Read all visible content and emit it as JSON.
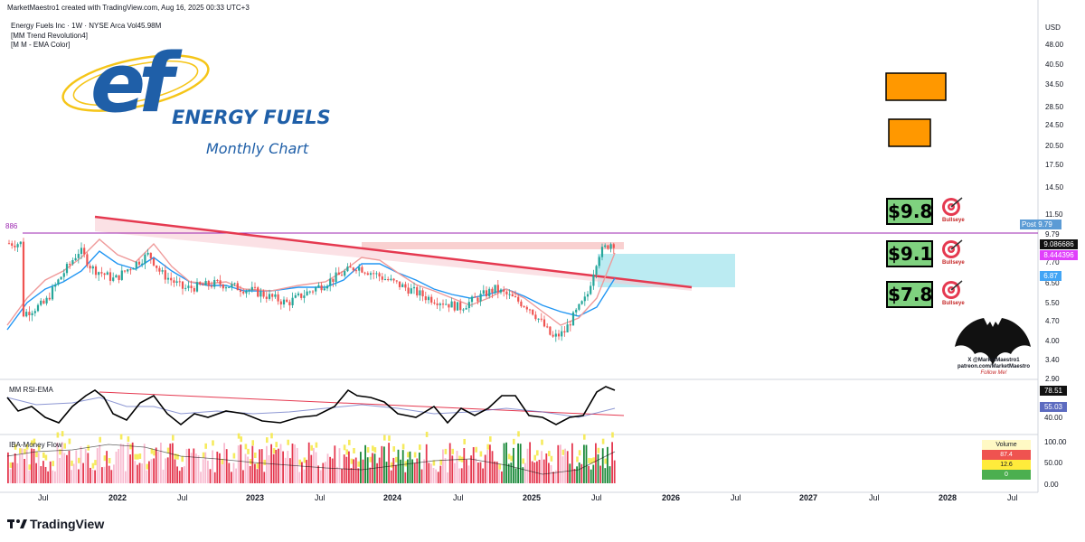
{
  "header": {
    "created": "MarketMaestro1 created with TradingView.com, Aug 16, 2025 00:33 UTC+3",
    "symbol_line": "Energy Fuels Inc · 1W · NYSE Arca  Vol45.98M",
    "indicator1": "[MM Trend Revolution4]",
    "indicator2": "[M M - EMA Color]"
  },
  "logo": {
    "letters": "ef",
    "brand": "ENERGY FUELS",
    "subtitle": "Monthly Chart"
  },
  "price_axis": {
    "currency": "USD",
    "ticks": [
      "48.00",
      "40.50",
      "34.50",
      "28.50",
      "24.50",
      "20.50",
      "17.50",
      "14.50",
      "11.50",
      "9.79",
      "7.70",
      "6.50",
      "5.50",
      "4.70",
      "4.00",
      "3.40",
      "2.90"
    ],
    "post_label": "Post",
    "post_value": "9.79",
    "last_value": "9.086686",
    "ema_value": "8.444396",
    "ema2_value": "6.87",
    "level_label": "886"
  },
  "targets": [
    {
      "label": "$9.8",
      "caption": "Bullseye"
    },
    {
      "label": "$9.1",
      "caption": "Bullseye"
    },
    {
      "label": "$7.8",
      "caption": "Bullseye"
    }
  ],
  "rsi": {
    "title": "MM RSI-EMA",
    "value": "78.51",
    "ema_value": "55.03",
    "tick": "40.00"
  },
  "money_flow": {
    "title": "IBA-Money Flow",
    "ticks": [
      "100.00",
      "50.00",
      "0.00"
    ],
    "table_header": "Volume",
    "table_rows": [
      "87.4",
      "12.6",
      "0"
    ]
  },
  "watermark": {
    "line1": "X @MarketMaestro1",
    "line2": "patreon.com/MarketMaestro",
    "line3": "Follow Me!"
  },
  "time_axis": [
    "Jul",
    "2022",
    "Jul",
    "2023",
    "Jul",
    "2024",
    "Jul",
    "2025",
    "Jul",
    "2026",
    "Jul",
    "2027",
    "Jul",
    "2028",
    "Jul"
  ],
  "footer": {
    "brand": "TradingView"
  },
  "colors": {
    "bull": "#26a69a",
    "bear": "#ef5350",
    "trendline": "#e53950",
    "resistance": "#9c27b0",
    "ema_fast": "#2196f3",
    "target_box": "#7fd17f",
    "orange_box": "#ff9800",
    "zone": "#a4e4ee"
  },
  "chart_data": {
    "type": "candlestick",
    "x_range": [
      "2021-05",
      "2028-09"
    ],
    "y_scale": "log",
    "y_range": [
      2.9,
      48
    ],
    "close_series_approx": [
      {
        "x": "2021-05",
        "y": 5.0
      },
      {
        "x": "2021-07",
        "y": 5.5
      },
      {
        "x": "2021-09",
        "y": 7.5
      },
      {
        "x": "2021-10",
        "y": 8.6
      },
      {
        "x": "2021-11",
        "y": 7.4
      },
      {
        "x": "2022-01",
        "y": 6.7
      },
      {
        "x": "2022-04",
        "y": 8.3
      },
      {
        "x": "2022-05",
        "y": 7.1
      },
      {
        "x": "2022-07",
        "y": 6.2
      },
      {
        "x": "2022-10",
        "y": 6.5
      },
      {
        "x": "2023-01",
        "y": 6.1
      },
      {
        "x": "2023-04",
        "y": 5.5
      },
      {
        "x": "2023-07",
        "y": 6.4
      },
      {
        "x": "2023-10",
        "y": 7.5
      },
      {
        "x": "2024-01",
        "y": 6.6
      },
      {
        "x": "2024-04",
        "y": 5.8
      },
      {
        "x": "2024-07",
        "y": 5.3
      },
      {
        "x": "2024-10",
        "y": 6.2
      },
      {
        "x": "2025-01",
        "y": 5.3
      },
      {
        "x": "2025-03",
        "y": 4.1
      },
      {
        "x": "2025-04",
        "y": 4.3
      },
      {
        "x": "2025-06",
        "y": 5.8
      },
      {
        "x": "2025-07",
        "y": 8.3
      },
      {
        "x": "2025-08",
        "y": 9.1
      }
    ],
    "lines": [
      {
        "name": "resistance",
        "y": 9.79
      },
      {
        "name": "trendline",
        "from": {
          "x": "2021-10",
          "y": 10.5
        },
        "to": {
          "x": "2026-03",
          "y": 6.1
        }
      }
    ],
    "zones": [
      {
        "name": "supply",
        "y": [
          8.4,
          8.8
        ]
      },
      {
        "name": "target",
        "x": [
          "2025-07",
          "2026-01"
        ],
        "y": [
          6.2,
          8.2
        ]
      }
    ]
  }
}
